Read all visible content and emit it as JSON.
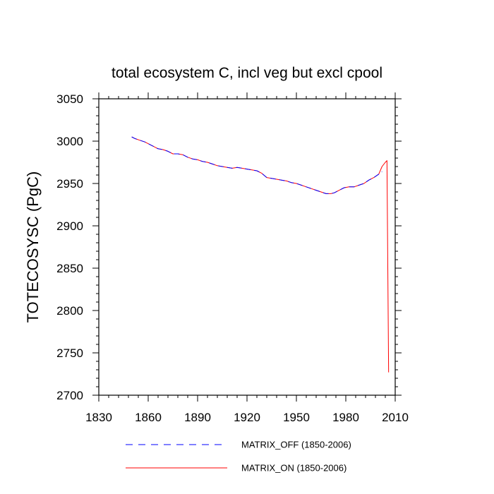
{
  "chart_data": {
    "type": "line",
    "title": "total ecosystem C, incl veg but excl cpool",
    "xlabel": "",
    "ylabel": "TOTECOSYSC  (PgC)",
    "xlim": [
      1830,
      2010
    ],
    "ylim": [
      2700,
      3050
    ],
    "xticks": [
      1830,
      1860,
      1890,
      1920,
      1950,
      1980,
      2010
    ],
    "yticks": [
      2700,
      2750,
      2800,
      2850,
      2900,
      2950,
      3000,
      3050
    ],
    "xtick_labels": [
      "1830",
      "1860",
      "1890",
      "1920",
      "1950",
      "1980",
      "2010"
    ],
    "ytick_labels": [
      "2700",
      "2750",
      "2800",
      "2850",
      "2900",
      "2950",
      "3000",
      "3050"
    ],
    "legend_position": "bottom",
    "series": [
      {
        "name": "MATRIX_OFF (1850-2006)",
        "color": "#0000ff",
        "style": "dashed",
        "x": [
          1850,
          1852,
          1855,
          1858,
          1860,
          1863,
          1866,
          1869,
          1872,
          1875,
          1878,
          1881,
          1884,
          1887,
          1890,
          1893,
          1896,
          1899,
          1902,
          1905,
          1908,
          1911,
          1914,
          1917,
          1920,
          1923,
          1926,
          1929,
          1932,
          1935,
          1938,
          1941,
          1944,
          1947,
          1950,
          1953,
          1956,
          1959,
          1962,
          1965,
          1968,
          1971,
          1973,
          1976,
          1979,
          1982,
          1985,
          1988,
          1991,
          1994,
          1997,
          2000,
          2002
        ],
        "values": [
          3005,
          3003,
          3001,
          2999,
          2997,
          2994,
          2991,
          2990,
          2988,
          2985,
          2985,
          2984,
          2981,
          2979,
          2978,
          2976,
          2975,
          2973,
          2971,
          2970,
          2969,
          2968,
          2969,
          2968,
          2967,
          2966,
          2965,
          2962,
          2957,
          2956,
          2955,
          2954,
          2953,
          2951,
          2950,
          2948,
          2946,
          2944,
          2942,
          2940,
          2938,
          2938,
          2939,
          2942,
          2945,
          2946,
          2946,
          2948,
          2950,
          2954,
          2957,
          2961,
          2964
        ]
      },
      {
        "name": "MATRIX_ON (1850-2006)",
        "color": "#ff0000",
        "style": "solid",
        "x": [
          1850,
          1852,
          1855,
          1858,
          1860,
          1863,
          1866,
          1869,
          1872,
          1875,
          1878,
          1881,
          1884,
          1887,
          1890,
          1893,
          1896,
          1899,
          1902,
          1905,
          1908,
          1911,
          1914,
          1917,
          1920,
          1923,
          1926,
          1929,
          1932,
          1935,
          1938,
          1941,
          1944,
          1947,
          1950,
          1953,
          1956,
          1959,
          1962,
          1965,
          1968,
          1971,
          1973,
          1976,
          1979,
          1982,
          1985,
          1988,
          1991,
          1994,
          1997,
          2000,
          2002,
          2004,
          2005,
          2006
        ],
        "values": [
          3005,
          3003,
          3001,
          2999,
          2997,
          2994,
          2991,
          2990,
          2988,
          2985,
          2985,
          2984,
          2981,
          2979,
          2978,
          2976,
          2975,
          2973,
          2971,
          2970,
          2969,
          2968,
          2969,
          2968,
          2967,
          2966,
          2965,
          2962,
          2957,
          2956,
          2955,
          2954,
          2953,
          2951,
          2950,
          2948,
          2946,
          2944,
          2942,
          2940,
          2938,
          2938,
          2939,
          2942,
          2945,
          2946,
          2946,
          2948,
          2950,
          2954,
          2957,
          2961,
          2970,
          2975,
          2977,
          2727
        ]
      }
    ]
  }
}
